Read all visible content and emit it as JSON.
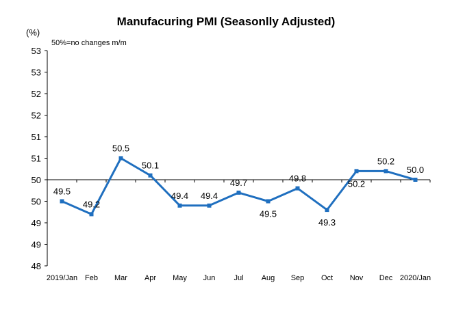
{
  "chart_data": {
    "type": "line",
    "title": "Manufacuring PMI (Seasonlly Adjusted)",
    "unit_label": "(%)",
    "note": "50%=no changes m/m",
    "categories": [
      "2019/Jan",
      "Feb",
      "Mar",
      "Apr",
      "May",
      "Jun",
      "Jul",
      "Aug",
      "Sep",
      "Oct",
      "Nov",
      "Dec",
      "2020/Jan"
    ],
    "values": [
      49.5,
      49.2,
      50.5,
      50.1,
      49.4,
      49.4,
      49.7,
      49.5,
      49.8,
      49.3,
      50.2,
      50.2,
      50.0
    ],
    "data_labels": [
      "49.5",
      "49.2",
      "50.5",
      "50.1",
      "49.4",
      "49.4",
      "49.7",
      "49.5",
      "49.8",
      "49.3",
      "50.2",
      "50.2",
      "50.0"
    ],
    "y_tick_labels": [
      "48",
      "49",
      "49",
      "50",
      "50",
      "51",
      "51",
      "52",
      "52",
      "53",
      "53"
    ],
    "ylim": [
      48,
      53
    ],
    "y_tick_step": 0.5,
    "reference_line": 50,
    "grid": false,
    "series_color": "#1f6fbf"
  }
}
